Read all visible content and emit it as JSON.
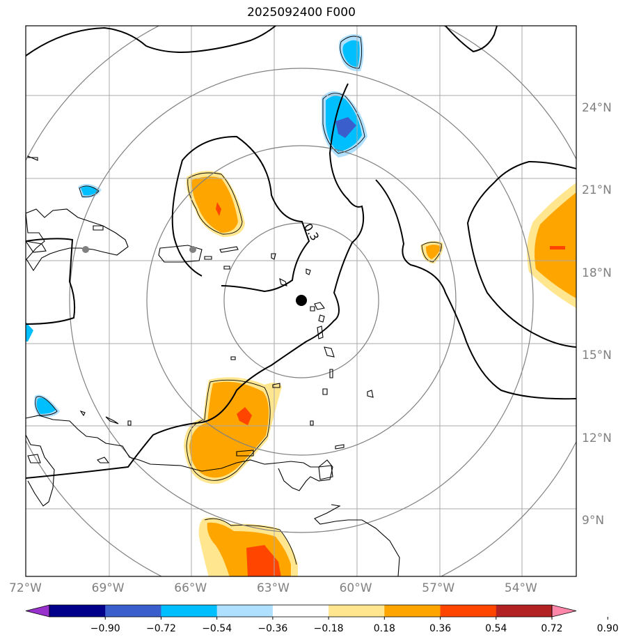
{
  "title": "2025092400 F000",
  "contour_label": "0.3",
  "map": {
    "lon_range": [
      -72,
      -52
    ],
    "lat_range": [
      7,
      27
    ],
    "center": {
      "lon": -62,
      "lat": 16.5
    },
    "range_rings": 4,
    "grid": true,
    "lat_ticks": [
      {
        "value": 24,
        "label": "24°N"
      },
      {
        "value": 21,
        "label": "21°N"
      },
      {
        "value": 18,
        "label": "18°N"
      },
      {
        "value": 15,
        "label": "15°N"
      },
      {
        "value": 12,
        "label": "12°N"
      },
      {
        "value": 9,
        "label": "9°N"
      }
    ],
    "lon_ticks": [
      {
        "value": -72,
        "label": "72°W"
      },
      {
        "value": -69,
        "label": "69°W"
      },
      {
        "value": -66,
        "label": "66°W"
      },
      {
        "value": -63,
        "label": "63°W"
      },
      {
        "value": -60,
        "label": "60°W"
      },
      {
        "value": -57,
        "label": "57°W"
      },
      {
        "value": -54,
        "label": "54°W"
      }
    ],
    "gray_markers": [
      {
        "lon": -69.9,
        "lat": 18.5
      },
      {
        "lon": -66.1,
        "lat": 18.5
      }
    ],
    "center_marker": {
      "lon": -62,
      "lat": 16.5
    }
  },
  "colorbar": {
    "ticks": [
      "−0.90",
      "−0.72",
      "−0.54",
      "−0.36",
      "−0.18",
      "0.18",
      "0.36",
      "0.54",
      "0.72",
      "0.90"
    ],
    "colors": [
      "#9932cc",
      "#00008b",
      "#3a5fcd",
      "#00bfff",
      "#b0e0ff",
      "#ffffff",
      "#ffe68f",
      "#ffa500",
      "#ff4500",
      "#b22222",
      "#ff88aa"
    ]
  }
}
